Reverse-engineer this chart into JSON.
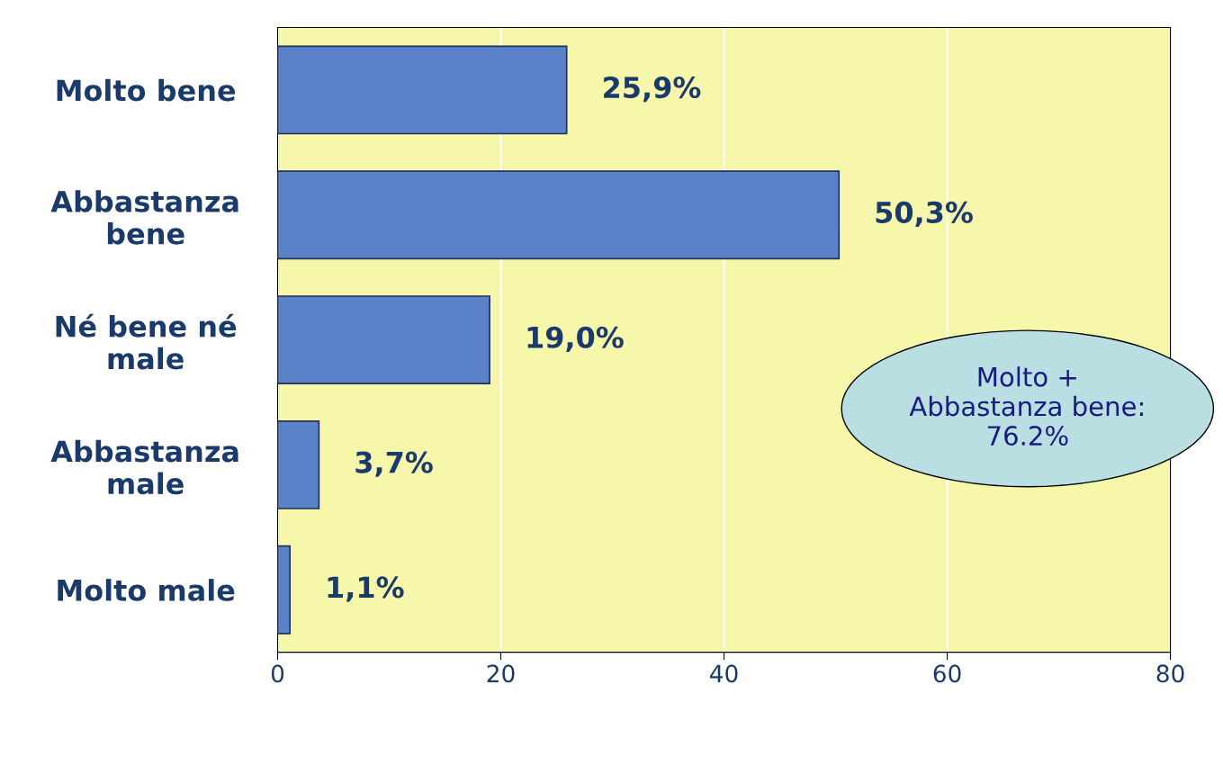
{
  "chart_data": {
    "type": "bar",
    "orientation": "horizontal",
    "categories": [
      "Molto bene",
      "Abbastanza\nbene",
      "Né bene né\nmale",
      "Abbastanza\nmale",
      "Molto male"
    ],
    "values": [
      25.9,
      50.3,
      19.0,
      3.7,
      1.1
    ],
    "value_labels": [
      "25,9%",
      "50,3%",
      "19,0%",
      "3,7%",
      "1,1%"
    ],
    "color": "#5b82c8",
    "xlim": [
      0,
      80
    ],
    "xticks": [
      0,
      20,
      40,
      60,
      80
    ],
    "grid": "x",
    "annotations": [
      "Molto +\nAbbastanza bene:\n76.2%"
    ]
  }
}
